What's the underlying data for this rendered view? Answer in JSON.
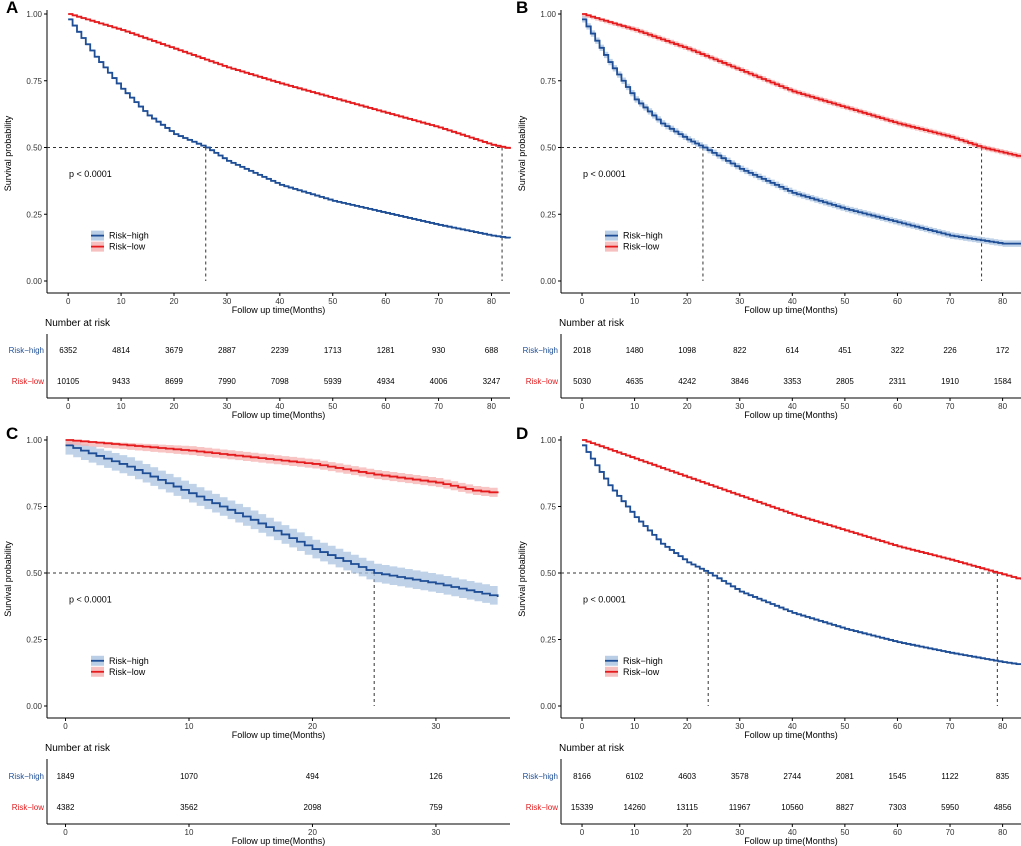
{
  "colors": {
    "high": "#1f4e96",
    "low": "#e41a1c",
    "highBand": "#a9c3e0",
    "lowBand": "#f5b0b0",
    "axis": "#000000"
  },
  "chart_data": [
    {
      "type": "line",
      "panel_label": "A",
      "ylabel": "Survival probability",
      "xlabel": "Follow up time(Months)",
      "xlim": [
        -4,
        83.5
      ],
      "ylim": [
        0,
        1
      ],
      "xticks": [
        0,
        10,
        20,
        30,
        40,
        50,
        60,
        70,
        80
      ],
      "yticks": [
        "0.00",
        "0.25",
        "0.50",
        "0.75",
        "1.00"
      ],
      "pvalue": "p < 0.0001",
      "legend": [
        "Risk−high",
        "Risk−low"
      ],
      "median_lines": [
        26,
        82
      ],
      "series": [
        {
          "name": "Risk-high",
          "points": [
            [
              0,
              0.98
            ],
            [
              5,
              0.84
            ],
            [
              10,
              0.72
            ],
            [
              15,
              0.62
            ],
            [
              20,
              0.55
            ],
            [
              26,
              0.5
            ],
            [
              30,
              0.45
            ],
            [
              40,
              0.36
            ],
            [
              50,
              0.3
            ],
            [
              60,
              0.255
            ],
            [
              70,
              0.21
            ],
            [
              80,
              0.17
            ],
            [
              83.5,
              0.16
            ]
          ],
          "band": 0.004
        },
        {
          "name": "Risk-low",
          "points": [
            [
              0,
              1.0
            ],
            [
              10,
              0.94
            ],
            [
              20,
              0.87
            ],
            [
              30,
              0.8
            ],
            [
              40,
              0.74
            ],
            [
              50,
              0.685
            ],
            [
              60,
              0.63
            ],
            [
              70,
              0.575
            ],
            [
              80,
              0.51
            ],
            [
              83.5,
              0.495
            ]
          ],
          "band": 0.004
        }
      ],
      "risk_table": {
        "title": "Number at risk",
        "rows": [
          {
            "label": "Risk−high",
            "values": [
              "6352",
              "4814",
              "3679",
              "2887",
              "2239",
              "1713",
              "1281",
              "930",
              "688"
            ]
          },
          {
            "label": "Risk−low",
            "values": [
              "10105",
              "9433",
              "8699",
              "7990",
              "7098",
              "5939",
              "4934",
              "4006",
              "3247"
            ]
          }
        ]
      }
    },
    {
      "type": "line",
      "panel_label": "B",
      "ylabel": "Survival probability",
      "xlabel": "Follow up time(Months)",
      "xlim": [
        -4,
        83.5
      ],
      "ylim": [
        0,
        1
      ],
      "xticks": [
        0,
        10,
        20,
        30,
        40,
        50,
        60,
        70,
        80
      ],
      "yticks": [
        "0.00",
        "0.25",
        "0.50",
        "0.75",
        "1.00"
      ],
      "pvalue": "p < 0.0001",
      "legend": [
        "Risk−high",
        "Risk−low"
      ],
      "median_lines": [
        23,
        76
      ],
      "series": [
        {
          "name": "Risk-high",
          "points": [
            [
              0,
              0.98
            ],
            [
              5,
              0.82
            ],
            [
              10,
              0.68
            ],
            [
              15,
              0.59
            ],
            [
              20,
              0.53
            ],
            [
              23,
              0.5
            ],
            [
              30,
              0.42
            ],
            [
              40,
              0.33
            ],
            [
              50,
              0.27
            ],
            [
              60,
              0.22
            ],
            [
              70,
              0.17
            ],
            [
              80,
              0.14
            ],
            [
              83.5,
              0.14
            ]
          ],
          "band": 0.012
        },
        {
          "name": "Risk-low",
          "points": [
            [
              0,
              1.0
            ],
            [
              10,
              0.94
            ],
            [
              20,
              0.87
            ],
            [
              30,
              0.79
            ],
            [
              40,
              0.71
            ],
            [
              50,
              0.65
            ],
            [
              60,
              0.59
            ],
            [
              70,
              0.54
            ],
            [
              76,
              0.5
            ],
            [
              83.5,
              0.465
            ]
          ],
          "band": 0.01
        }
      ],
      "risk_table": {
        "title": "Number at risk",
        "rows": [
          {
            "label": "Risk−high",
            "values": [
              "2018",
              "1480",
              "1098",
              "822",
              "614",
              "451",
              "322",
              "226",
              "172"
            ]
          },
          {
            "label": "Risk−low",
            "values": [
              "5030",
              "4635",
              "4242",
              "3846",
              "3353",
              "2805",
              "2311",
              "1910",
              "1584"
            ]
          }
        ]
      }
    },
    {
      "type": "line",
      "panel_label": "C",
      "ylabel": "Survival probability",
      "xlabel": "Follow up time(Months)",
      "xlim": [
        -1.5,
        36
      ],
      "ylim": [
        0,
        1
      ],
      "xticks": [
        0,
        10,
        20,
        30
      ],
      "yticks": [
        "0.00",
        "0.25",
        "0.50",
        "0.75",
        "1.00"
      ],
      "pvalue": "p < 0.0001",
      "legend": [
        "Risk−high",
        "Risk−low"
      ],
      "median_lines": [
        25
      ],
      "series": [
        {
          "name": "Risk-high",
          "points": [
            [
              0,
              0.98
            ],
            [
              5,
              0.9
            ],
            [
              10,
              0.8
            ],
            [
              15,
              0.7
            ],
            [
              20,
              0.59
            ],
            [
              25,
              0.5
            ],
            [
              30,
              0.46
            ],
            [
              35,
              0.41
            ]
          ],
          "band": 0.035
        },
        {
          "name": "Risk-low",
          "points": [
            [
              0,
              1.0
            ],
            [
              10,
              0.96
            ],
            [
              20,
              0.91
            ],
            [
              25,
              0.87
            ],
            [
              30,
              0.84
            ],
            [
              33,
              0.81
            ],
            [
              35,
              0.8
            ]
          ],
          "band": 0.017
        }
      ],
      "risk_table": {
        "title": "Number at risk",
        "rows": [
          {
            "label": "Risk−high",
            "values": [
              "1849",
              "1070",
              "494",
              "126"
            ]
          },
          {
            "label": "Risk−low",
            "values": [
              "4382",
              "3562",
              "2098",
              "759"
            ]
          }
        ]
      }
    },
    {
      "type": "line",
      "panel_label": "D",
      "ylabel": "Survival probability",
      "xlabel": "Follow up time(Months)",
      "xlim": [
        -4,
        83.5
      ],
      "ylim": [
        0,
        1
      ],
      "xticks": [
        0,
        10,
        20,
        30,
        40,
        50,
        60,
        70,
        80
      ],
      "yticks": [
        "0.00",
        "0.25",
        "0.50",
        "0.75",
        "1.00"
      ],
      "pvalue": "p < 0.0001",
      "legend": [
        "Risk−high",
        "Risk−low"
      ],
      "median_lines": [
        24,
        79
      ],
      "series": [
        {
          "name": "Risk-high",
          "points": [
            [
              0,
              0.98
            ],
            [
              5,
              0.83
            ],
            [
              10,
              0.71
            ],
            [
              15,
              0.61
            ],
            [
              20,
              0.54
            ],
            [
              24,
              0.5
            ],
            [
              30,
              0.43
            ],
            [
              40,
              0.35
            ],
            [
              50,
              0.29
            ],
            [
              60,
              0.24
            ],
            [
              70,
              0.2
            ],
            [
              80,
              0.165
            ],
            [
              83.5,
              0.155
            ]
          ],
          "band": 0.004
        },
        {
          "name": "Risk-low",
          "points": [
            [
              0,
              1.0
            ],
            [
              10,
              0.93
            ],
            [
              20,
              0.86
            ],
            [
              30,
              0.79
            ],
            [
              40,
              0.72
            ],
            [
              50,
              0.66
            ],
            [
              60,
              0.6
            ],
            [
              70,
              0.55
            ],
            [
              79,
              0.5
            ],
            [
              83.5,
              0.475
            ]
          ],
          "band": 0.004
        }
      ],
      "risk_table": {
        "title": "Number at risk",
        "rows": [
          {
            "label": "Risk−high",
            "values": [
              "8166",
              "6102",
              "4603",
              "3578",
              "2744",
              "2081",
              "1545",
              "1122",
              "835"
            ]
          },
          {
            "label": "Risk−low",
            "values": [
              "15339",
              "14260",
              "13115",
              "11967",
              "10560",
              "8827",
              "7303",
              "5950",
              "4856"
            ]
          }
        ]
      }
    }
  ]
}
